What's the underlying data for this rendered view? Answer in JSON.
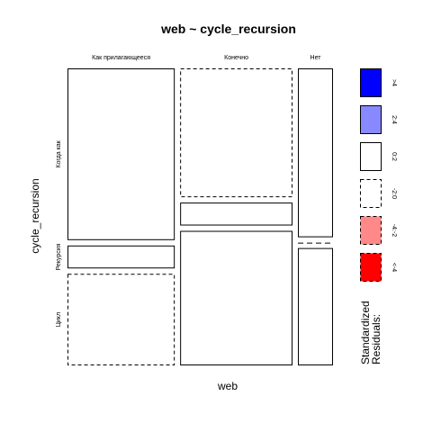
{
  "chart_data": {
    "type": "mosaic",
    "title": "web ~ cycle_recursion",
    "xlabel": "web",
    "ylabel": "cycle_recursion",
    "x_categories": [
      "Как прилагающееся",
      "Конечно",
      "Нет"
    ],
    "y_categories": [
      "Когда как",
      "Рекурсия",
      "Цикл"
    ],
    "column_proportions": [
      0.376,
      0.394,
      0.123
    ],
    "cells": [
      {
        "x": "Как прилагающееся",
        "y": "Когда как",
        "proportion": 0.6,
        "residual_class": "0:2"
      },
      {
        "x": "Как прилагающееся",
        "y": "Рекурсия",
        "proportion": 0.08,
        "residual_class": "0:2"
      },
      {
        "x": "Как прилагающееся",
        "y": "Цикл",
        "proportion": 0.32,
        "residual_class": "-2:0"
      },
      {
        "x": "Конечно",
        "y": "Когда как",
        "proportion": 0.45,
        "residual_class": "-2:0"
      },
      {
        "x": "Конечно",
        "y": "Рекурсия",
        "proportion": 0.08,
        "residual_class": "0:2"
      },
      {
        "x": "Конечно",
        "y": "Цикл",
        "proportion": 0.47,
        "residual_class": "0:2"
      },
      {
        "x": "Нет",
        "y": "Когда как",
        "proportion": 0.59,
        "residual_class": "0:2"
      },
      {
        "x": "Нет",
        "y": "Рекурсия",
        "proportion": 0.0,
        "residual_class": "-2:0"
      },
      {
        "x": "Нет",
        "y": "Цикл",
        "proportion": 0.41,
        "residual_class": "0:2"
      }
    ],
    "legend": {
      "title": "Standardized Residuals:",
      "entries": [
        {
          "label": ">4",
          "color": "#0000ff",
          "border": "solid"
        },
        {
          "label": "2:4",
          "color": "#8888ff",
          "border": "solid"
        },
        {
          "label": "0:2",
          "color": "#ffffff",
          "border": "solid"
        },
        {
          "label": "-2:0",
          "color": "#ffffff",
          "border": "dashed"
        },
        {
          "label": "-4:-2",
          "color": "#ff8888",
          "border": "dashed"
        },
        {
          "label": "<-4",
          "color": "#ff0000",
          "border": "dashed"
        }
      ]
    }
  }
}
